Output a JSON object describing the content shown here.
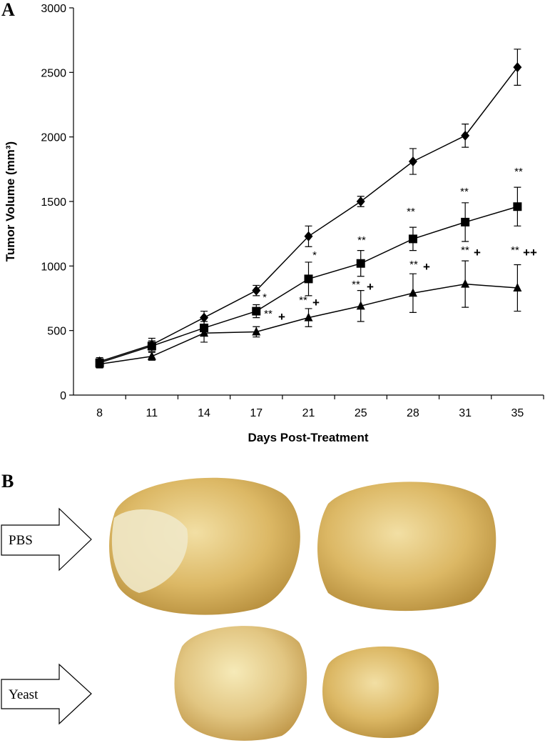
{
  "chart_data": {
    "type": "line",
    "panel_labels": [
      "A",
      "B"
    ],
    "xlabel": "Days Post-Treatment",
    "ylabel": "Tumor Volume (mm³)",
    "categories": [
      "8",
      "11",
      "14",
      "17",
      "21",
      "25",
      "28",
      "31",
      "35"
    ],
    "ylim": [
      0,
      3000
    ],
    "yticks": [
      0,
      500,
      1000,
      1500,
      2000,
      2500,
      3000
    ],
    "series": [
      {
        "marker": "diamond",
        "color": "#000000",
        "values": [
          260,
          390,
          600,
          810,
          1230,
          1500,
          1810,
          2010,
          2540
        ],
        "errors": [
          30,
          50,
          50,
          40,
          80,
          40,
          100,
          90,
          140
        ]
      },
      {
        "marker": "square",
        "color": "#000000",
        "values": [
          250,
          380,
          520,
          650,
          900,
          1020,
          1210,
          1340,
          1460
        ],
        "errors": [
          30,
          40,
          50,
          50,
          130,
          100,
          90,
          150,
          150
        ]
      },
      {
        "marker": "triangle",
        "color": "#000000",
        "values": [
          240,
          300,
          480,
          490,
          600,
          690,
          790,
          860,
          830
        ],
        "errors": [
          30,
          30,
          70,
          40,
          70,
          120,
          150,
          180,
          180
        ]
      }
    ],
    "annotations": [
      "*",
      "**",
      "+",
      "*",
      "**",
      "+",
      "**",
      "**",
      "+",
      "**",
      "**",
      "+",
      "**",
      "**",
      "+",
      "**",
      "**",
      "++"
    ],
    "photo_labels": [
      "PBS",
      "Yeast"
    ]
  }
}
